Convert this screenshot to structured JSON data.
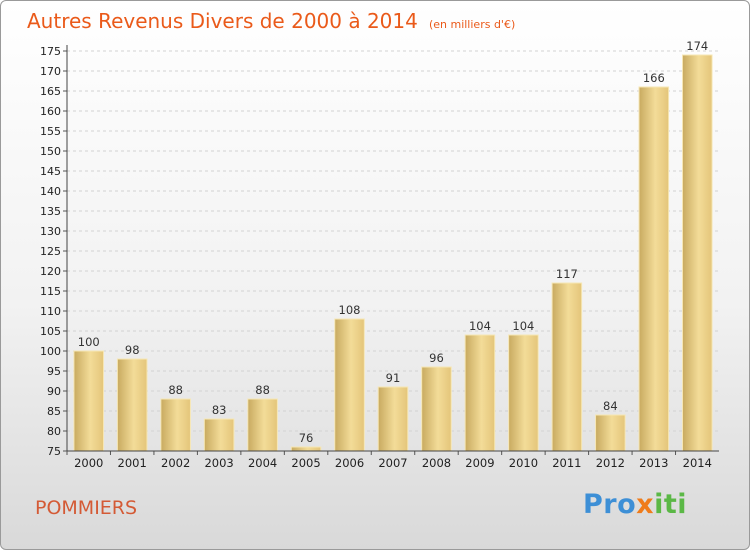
{
  "chart_data": {
    "type": "bar",
    "title": "Autres Revenus Divers de 2000 à 2014",
    "subtitle": "(en milliers d'€)",
    "categories": [
      "2000",
      "2001",
      "2002",
      "2003",
      "2004",
      "2005",
      "2006",
      "2007",
      "2008",
      "2009",
      "2010",
      "2011",
      "2012",
      "2013",
      "2014"
    ],
    "values": [
      100,
      98,
      88,
      83,
      88,
      76,
      108,
      91,
      96,
      104,
      104,
      117,
      84,
      166,
      174
    ],
    "ylim": [
      75,
      175
    ],
    "ytick_step": 5,
    "grid": true,
    "bar_color": "#e8cf84"
  },
  "location": "POMMIERS",
  "logo": {
    "part1": "Pro",
    "part2": "x",
    "part3": "iti"
  }
}
